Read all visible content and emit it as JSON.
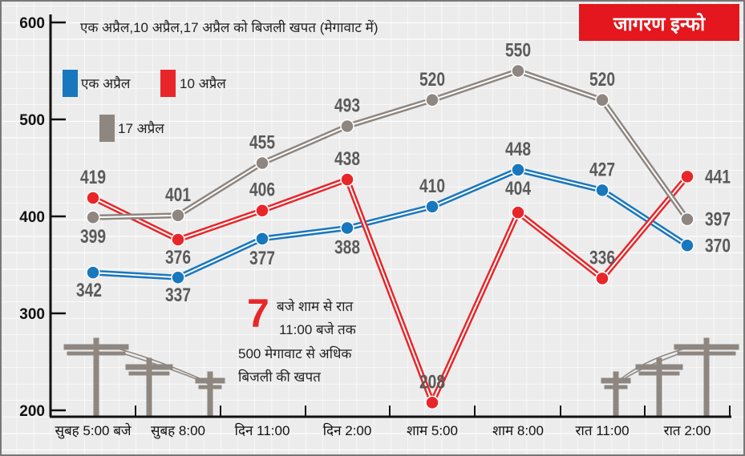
{
  "badge": {
    "label": "जागरण इन्फो",
    "color": "#e3171d"
  },
  "chart_data": {
    "type": "line",
    "title": "एक अप्रैल,10 अप्रैल,17 अप्रैल को बिजली खपत (मेगावाट में)",
    "categories": [
      "सुबह 5:00 बजे",
      "सुबह 8:00",
      "दिन 11:00",
      "दिन 2:00",
      "शाम 5:00",
      "शाम 8:00",
      "रात 11:00",
      "रात 2:00"
    ],
    "yticks": [
      "600",
      "500",
      "400",
      "300",
      "200"
    ],
    "ylim": [
      200,
      600
    ],
    "grid": true,
    "legend_position": "top-left",
    "series": [
      {
        "name": "एक अप्रैल",
        "color": "#1877bd",
        "values": [
          342,
          337,
          377,
          388,
          410,
          448,
          427,
          370
        ]
      },
      {
        "name": "10 अप्रैल",
        "color": "#e8262a",
        "values": [
          419,
          376,
          406,
          438,
          208,
          404,
          336,
          441
        ]
      },
      {
        "name": "17 अप्रैल",
        "color": "#8e8680",
        "values": [
          399,
          401,
          455,
          493,
          520,
          550,
          520,
          397
        ]
      }
    ],
    "annotation": {
      "number": "7",
      "lines": [
        "बजे शाम से रात",
        "11:00 बजे तक",
        "500 मेगावाट से अधिक",
        "बिजली की खपत"
      ]
    }
  }
}
